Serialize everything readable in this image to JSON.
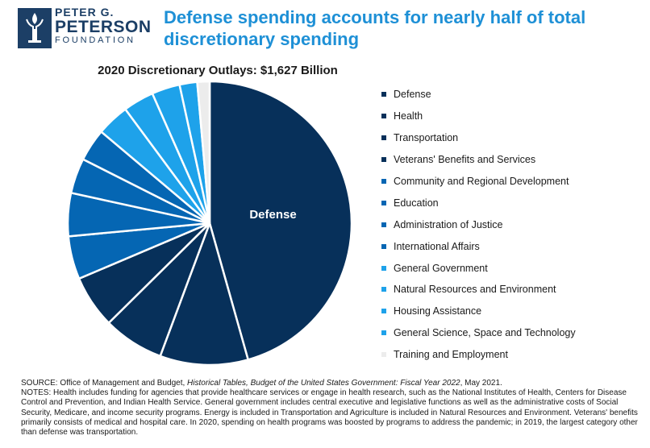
{
  "logo": {
    "line1": "PETER G.",
    "line2": "PETERSON",
    "line3": "FOUNDATION"
  },
  "headline": "Defense spending accounts for nearly half of total discretionary spending",
  "chart_data": {
    "type": "pie",
    "title": "2020 Discretionary Outlays: $1,627 Billion",
    "unit": "percent of discretionary outlays (approx.)",
    "slices": [
      {
        "label": "Defense",
        "value": 45.5,
        "color": "#07305a"
      },
      {
        "label": "Health",
        "value": 10.0,
        "color": "#07305a"
      },
      {
        "label": "Transportation",
        "value": 6.9,
        "color": "#07305a"
      },
      {
        "label": "Veterans' Benefits and Services",
        "value": 6.0,
        "color": "#07305a"
      },
      {
        "label": "Community and Regional Development",
        "value": 4.9,
        "color": "#0566b3"
      },
      {
        "label": "Education",
        "value": 4.9,
        "color": "#0566b3"
      },
      {
        "label": "Administration of Justice",
        "value": 4.0,
        "color": "#0566b3"
      },
      {
        "label": "International Affairs",
        "value": 3.7,
        "color": "#0566b3"
      },
      {
        "label": "General Government",
        "value": 3.7,
        "color": "#1ea2ea"
      },
      {
        "label": "Natural Resources and Environment",
        "value": 3.5,
        "color": "#1ea2ea"
      },
      {
        "label": "Housing Assistance",
        "value": 3.2,
        "color": "#1ea2ea"
      },
      {
        "label": "General Science, Space and Technology",
        "value": 2.0,
        "color": "#1ea2ea"
      },
      {
        "label": "Training and Employment",
        "value": 1.4,
        "color": "#ececec"
      }
    ],
    "inside_labels": [
      "Defense"
    ],
    "legend_position": "right"
  },
  "source": {
    "prefix": "SOURCE: Office of Management and Budget, ",
    "italic": "Historical Tables, Budget of the United States Government: Fiscal Year 2022",
    "suffix": ", May 2021."
  },
  "notes": "NOTES: Health includes funding for agencies that provide healthcare services or engage in health research, such as the National Institutes of Health, Centers for Disease Control and Prevention, and Indian Health Service. General government includes central executive and legislative functions as well as the administrative costs of Social Security, Medicare, and income security programs. Energy is included in Transportation and Agriculture is included in Natural Resources and Environment. Veterans' benefits primarily consists of medical and hospital care. In 2020, spending on health programs was boosted by programs to address the pandemic; in 2019, the largest category other than defense was transportation."
}
